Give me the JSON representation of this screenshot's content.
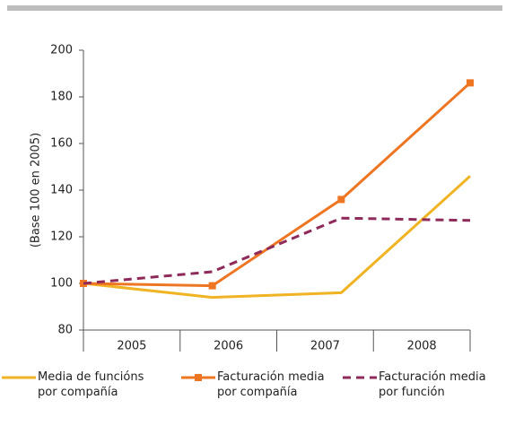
{
  "chart_data": {
    "type": "line",
    "y_label": "(Base 100 en 2005)",
    "categories": [
      "2005",
      "2006",
      "2007",
      "2008"
    ],
    "series": [
      {
        "name": "Media de funcións por compañía",
        "color": "#f0b323",
        "dash": false,
        "marker": false,
        "values": [
          100,
          94,
          96,
          146
        ]
      },
      {
        "name": "Facturación media por compañía",
        "color": "#ee7623",
        "dash": false,
        "marker": true,
        "values": [
          100,
          99,
          136,
          186
        ]
      },
      {
        "name": "Facturación media por función",
        "color": "#8e2a5a",
        "dash": true,
        "marker": false,
        "values": [
          100,
          105,
          128,
          127
        ]
      }
    ],
    "ylim": [
      80,
      200
    ],
    "yticks": [
      80,
      100,
      120,
      140,
      160,
      180,
      200
    ],
    "grid": false
  }
}
